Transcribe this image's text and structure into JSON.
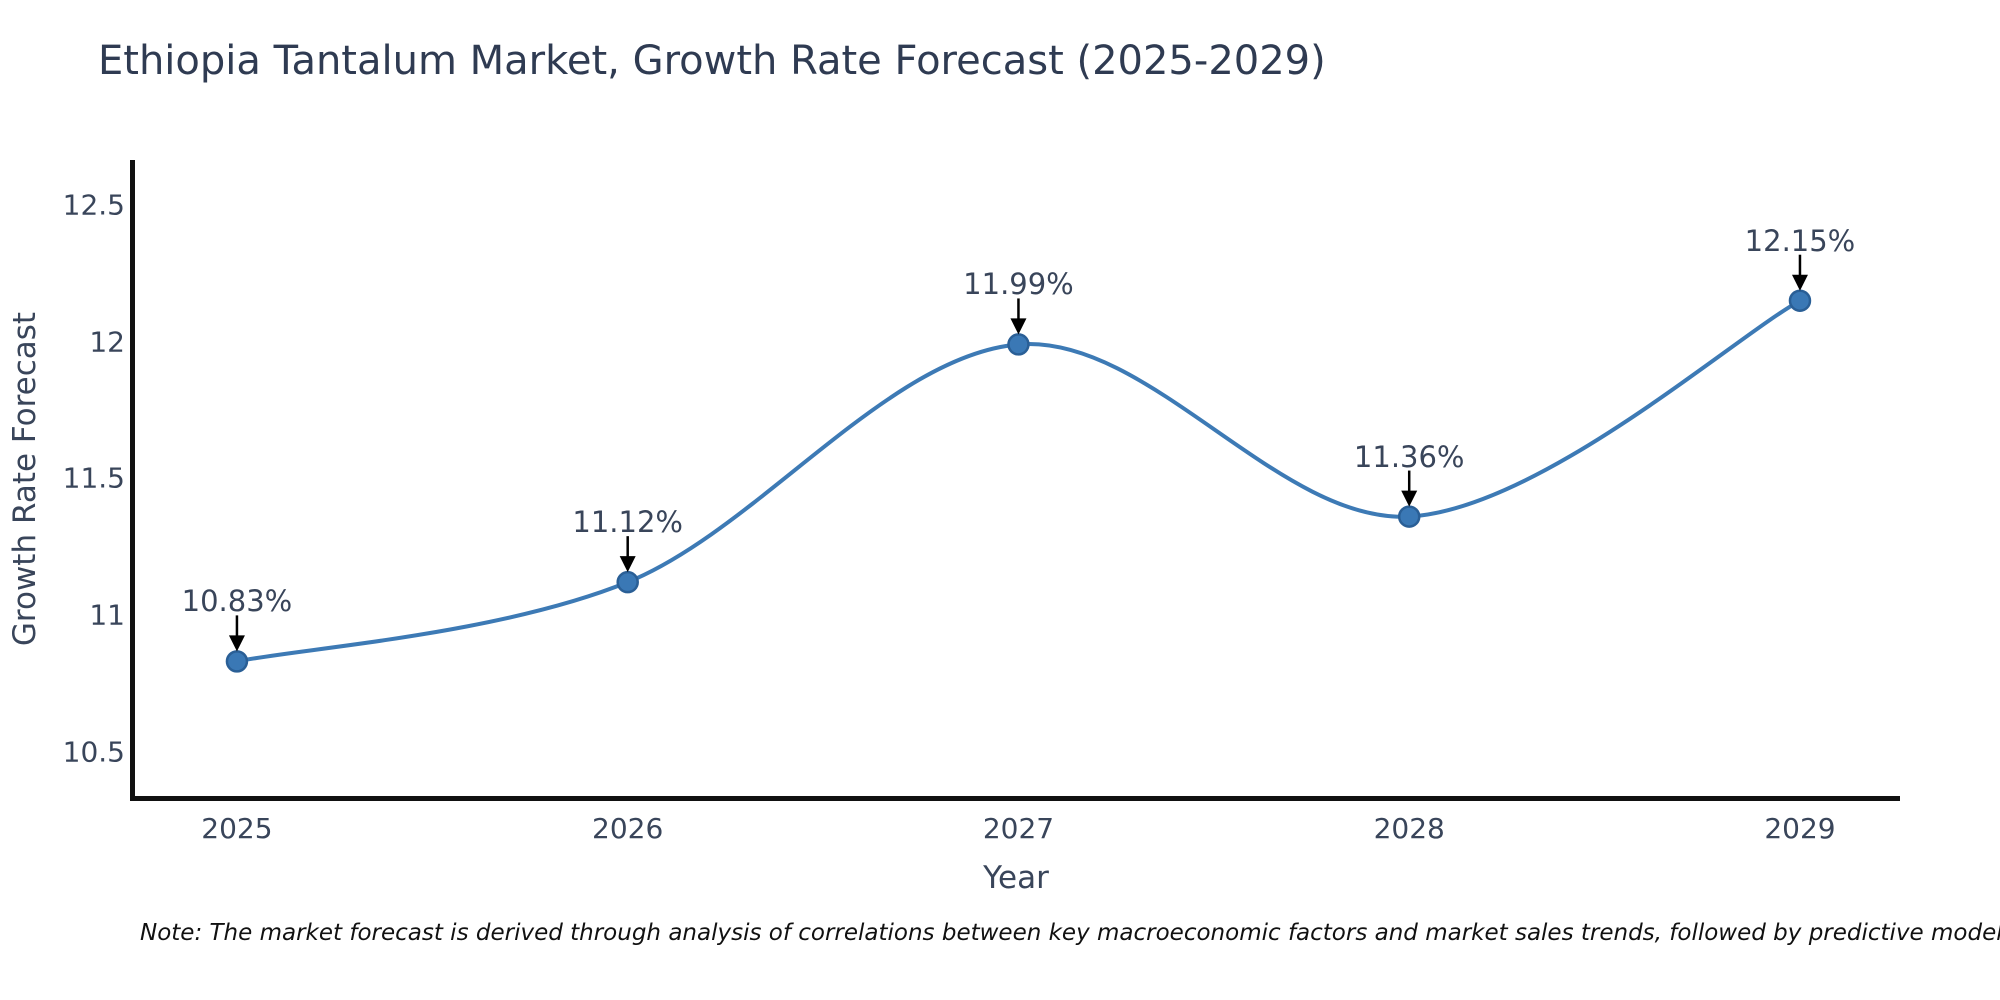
{
  "note": "Note: The market forecast is derived through analysis of correlations between key macroeconomic factors and market sales trends, followed by predictive modeling to project future sal",
  "chart_data": {
    "type": "line",
    "title": "Ethiopia Tantalum Market, Growth Rate Forecast (2025-2029)",
    "xlabel": "Year",
    "ylabel": "Growth Rate Forecast",
    "x": [
      2025,
      2026,
      2027,
      2028,
      2029
    ],
    "series": [
      {
        "name": "Growth Rate Forecast",
        "values": [
          10.83,
          11.12,
          11.99,
          11.36,
          12.15
        ]
      }
    ],
    "point_labels": [
      "10.83%",
      "11.12%",
      "11.99%",
      "11.36%",
      "12.15%"
    ],
    "xtick_labels": [
      "2025",
      "2026",
      "2027",
      "2028",
      "2029"
    ],
    "yticks": [
      10.5,
      11,
      11.5,
      12,
      12.5
    ],
    "ytick_labels": [
      "10.5",
      "11",
      "11.5",
      "12",
      "12.5"
    ],
    "xlim": [
      2024.734,
      2029.256
    ],
    "ylim": [
      10.33,
      12.665
    ],
    "grid": false,
    "legend": "none",
    "colors": {
      "line": "#3d7ab5",
      "marker_fill": "#3a78b5",
      "marker_edge": "#2a5f96",
      "arrow": "#000000",
      "spine": "#111111",
      "title_text": "#2f3b52",
      "tick_text": "#39455a",
      "note_text": "#111111"
    }
  }
}
